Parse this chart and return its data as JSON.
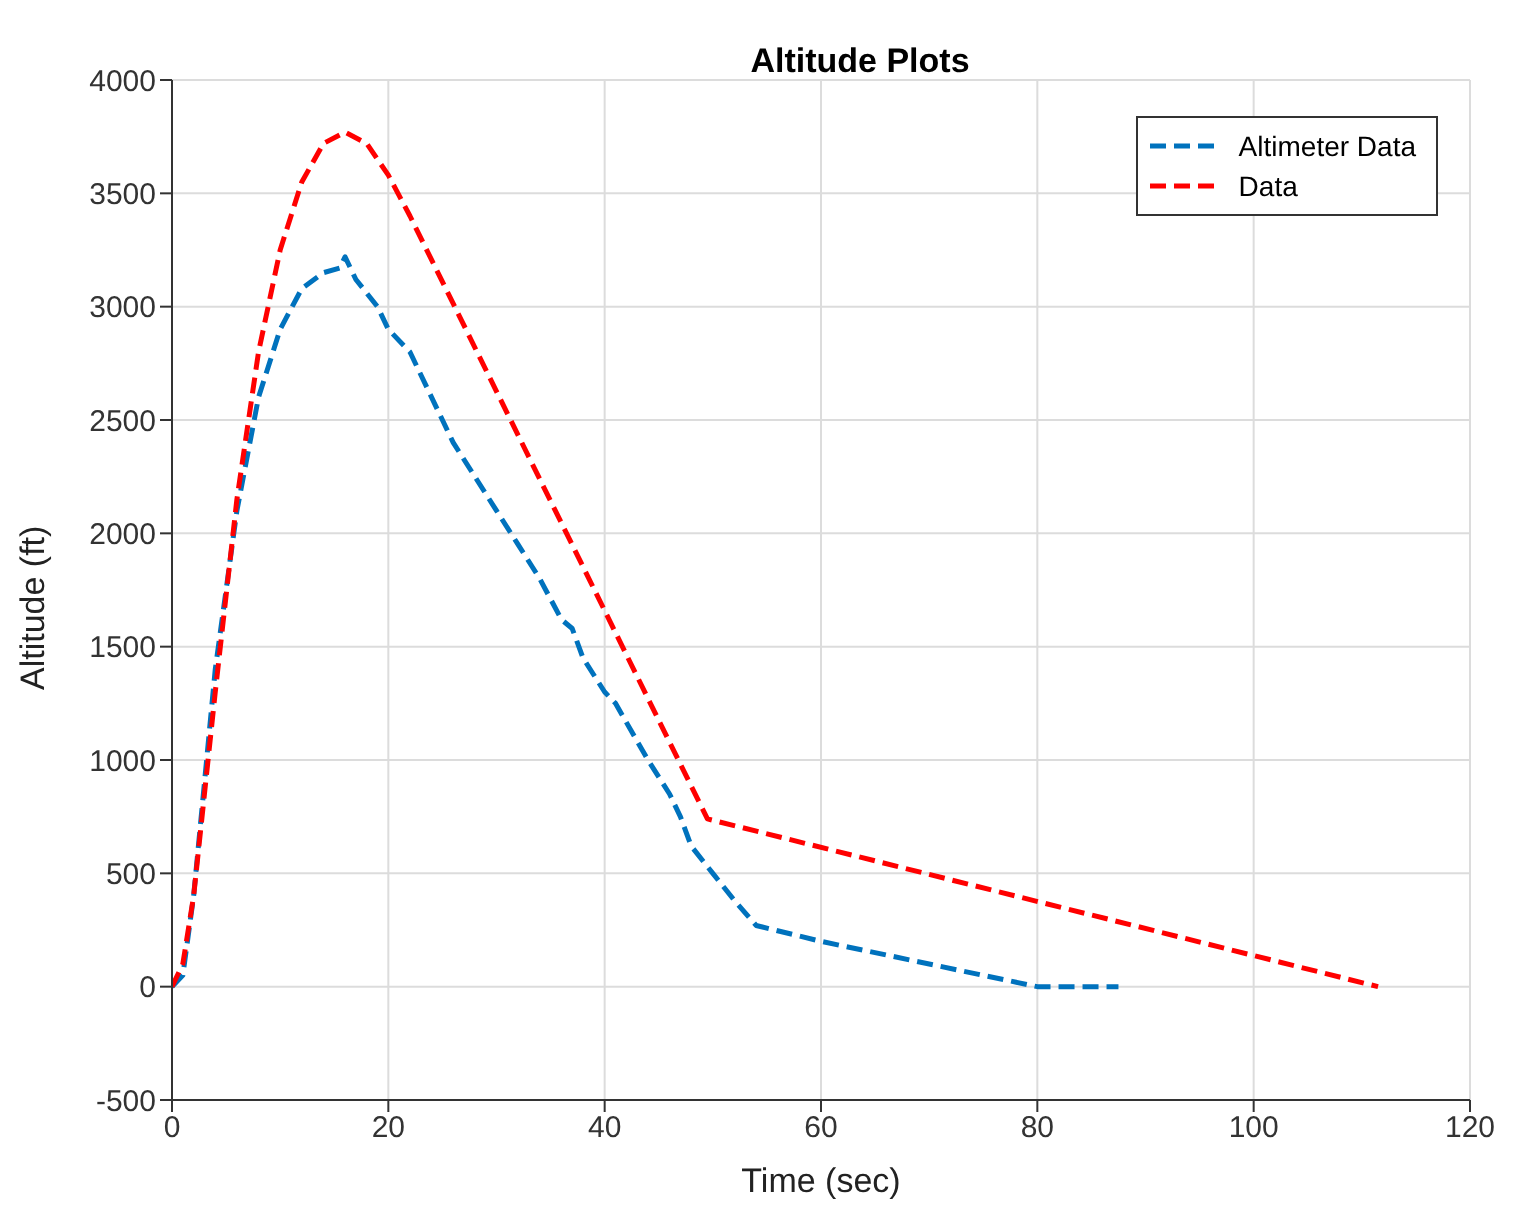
{
  "chart_data": {
    "type": "line",
    "title": "Altitude Plots",
    "xlabel": "Time (sec)",
    "ylabel": "Altitude (ft)",
    "xlim": [
      0,
      120
    ],
    "xticks": [
      0,
      20,
      40,
      60,
      80,
      100,
      120
    ],
    "ylim": [
      -500,
      4000
    ],
    "yticks": [
      -500,
      0,
      500,
      1000,
      1500,
      2000,
      2500,
      3000,
      3500,
      4000
    ],
    "grid": true,
    "legend": "top right",
    "marker": "none",
    "series": [
      {
        "name": "Altimeter Data",
        "color": "#0072bd",
        "line_style": "dashed",
        "x": [
          0,
          1,
          2,
          3,
          4,
          6,
          8,
          10,
          12,
          14,
          15.5,
          16,
          17,
          19,
          20,
          22,
          24,
          26,
          28,
          30,
          32,
          34,
          36,
          37,
          38,
          40,
          41,
          44,
          46,
          47,
          48,
          50,
          52,
          54,
          60,
          70,
          80,
          82,
          87.5
        ],
        "values": [
          0,
          50,
          400,
          900,
          1400,
          2100,
          2600,
          2900,
          3080,
          3150,
          3170,
          3220,
          3120,
          3000,
          2900,
          2800,
          2600,
          2400,
          2250,
          2100,
          1950,
          1800,
          1620,
          1580,
          1450,
          1300,
          1250,
          1000,
          850,
          750,
          620,
          500,
          380,
          270,
          200,
          100,
          0,
          0,
          0
        ]
      },
      {
        "name": "Data",
        "color": "#ff0000",
        "line_style": "dashed",
        "x": [
          0,
          1,
          2,
          4,
          6,
          8,
          10,
          12,
          14,
          16,
          18,
          20,
          22,
          49.5,
          111.5
        ],
        "values": [
          0,
          100,
          400,
          1300,
          2150,
          2800,
          3250,
          3550,
          3720,
          3770,
          3720,
          3580,
          3400,
          740,
          0
        ]
      }
    ]
  }
}
